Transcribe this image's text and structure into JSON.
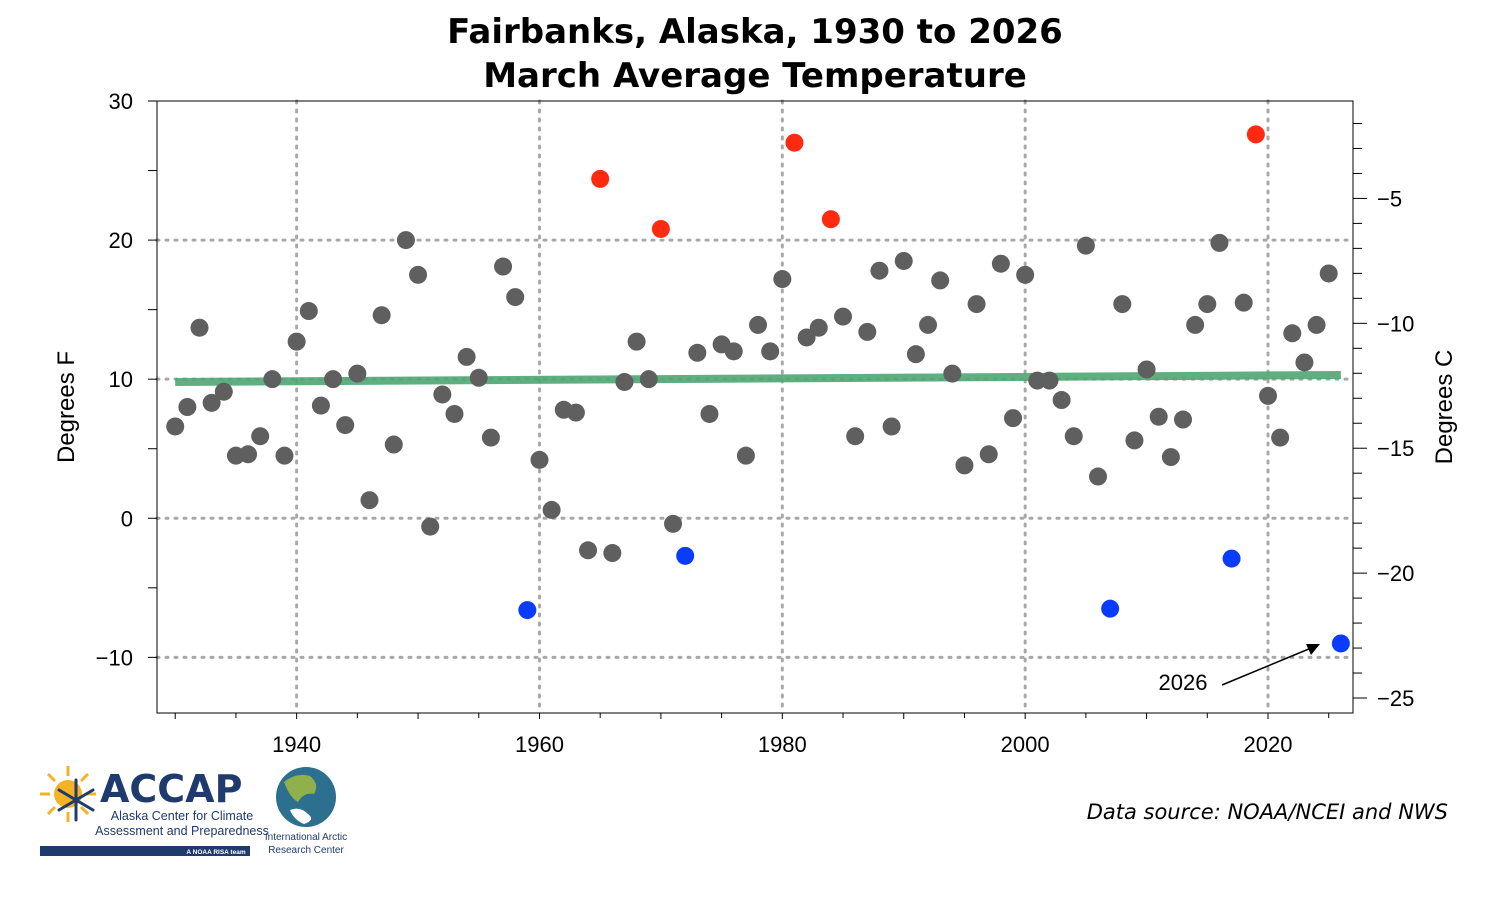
{
  "chart_data": {
    "type": "scatter",
    "title": "Fairbanks, Alaska, 1930 to 2026",
    "subtitle": "March Average Temperature",
    "ylabel": "Degrees F",
    "y2label": "Degrees C",
    "xlim": [
      1928.5,
      2027.0
    ],
    "ylim": [
      -14,
      30
    ],
    "y2lim": [
      -25.6,
      -1.1
    ],
    "xticks": [
      1940,
      1960,
      1980,
      2000,
      2020
    ],
    "yticks": [
      -10,
      0,
      10,
      20,
      30
    ],
    "y2ticks": [
      -25,
      -20,
      -15,
      -10,
      -5
    ],
    "grid": "dotted, major ticks",
    "colors": {
      "normal": "#5f5f5f",
      "warm": "#ff2a10",
      "cold": "#0a3cff",
      "trend": "#4fa774"
    },
    "trend": {
      "x": [
        1930,
        2026
      ],
      "y": [
        9.8,
        10.3
      ]
    },
    "annotation": {
      "text": "2026",
      "x": 2026,
      "y": -9.0
    },
    "points": [
      {
        "x": 1930,
        "y": 6.6,
        "c": "normal"
      },
      {
        "x": 1931,
        "y": 8.0,
        "c": "normal"
      },
      {
        "x": 1932,
        "y": 13.7,
        "c": "normal"
      },
      {
        "x": 1933,
        "y": 8.3,
        "c": "normal"
      },
      {
        "x": 1934,
        "y": 9.1,
        "c": "normal"
      },
      {
        "x": 1935,
        "y": 4.5,
        "c": "normal"
      },
      {
        "x": 1936,
        "y": 4.6,
        "c": "normal"
      },
      {
        "x": 1937,
        "y": 5.9,
        "c": "normal"
      },
      {
        "x": 1938,
        "y": 10.0,
        "c": "normal"
      },
      {
        "x": 1939,
        "y": 4.5,
        "c": "normal"
      },
      {
        "x": 1940,
        "y": 12.7,
        "c": "normal"
      },
      {
        "x": 1941,
        "y": 14.9,
        "c": "normal"
      },
      {
        "x": 1942,
        "y": 8.1,
        "c": "normal"
      },
      {
        "x": 1943,
        "y": 10.0,
        "c": "normal"
      },
      {
        "x": 1944,
        "y": 6.7,
        "c": "normal"
      },
      {
        "x": 1945,
        "y": 10.4,
        "c": "normal"
      },
      {
        "x": 1946,
        "y": 1.3,
        "c": "normal"
      },
      {
        "x": 1947,
        "y": 14.6,
        "c": "normal"
      },
      {
        "x": 1948,
        "y": 5.3,
        "c": "normal"
      },
      {
        "x": 1949,
        "y": 20.0,
        "c": "normal"
      },
      {
        "x": 1950,
        "y": 17.5,
        "c": "normal"
      },
      {
        "x": 1951,
        "y": -0.6,
        "c": "normal"
      },
      {
        "x": 1952,
        "y": 8.9,
        "c": "normal"
      },
      {
        "x": 1953,
        "y": 7.5,
        "c": "normal"
      },
      {
        "x": 1954,
        "y": 11.6,
        "c": "normal"
      },
      {
        "x": 1955,
        "y": 10.1,
        "c": "normal"
      },
      {
        "x": 1956,
        "y": 5.8,
        "c": "normal"
      },
      {
        "x": 1957,
        "y": 18.1,
        "c": "normal"
      },
      {
        "x": 1958,
        "y": 15.9,
        "c": "normal"
      },
      {
        "x": 1959,
        "y": -6.6,
        "c": "cold"
      },
      {
        "x": 1960,
        "y": 4.2,
        "c": "normal"
      },
      {
        "x": 1961,
        "y": 0.6,
        "c": "normal"
      },
      {
        "x": 1962,
        "y": 7.8,
        "c": "normal"
      },
      {
        "x": 1963,
        "y": 7.6,
        "c": "normal"
      },
      {
        "x": 1964,
        "y": -2.3,
        "c": "normal"
      },
      {
        "x": 1965,
        "y": 24.4,
        "c": "warm"
      },
      {
        "x": 1966,
        "y": -2.5,
        "c": "normal"
      },
      {
        "x": 1967,
        "y": 9.8,
        "c": "normal"
      },
      {
        "x": 1968,
        "y": 12.7,
        "c": "normal"
      },
      {
        "x": 1969,
        "y": 10.0,
        "c": "normal"
      },
      {
        "x": 1970,
        "y": 20.8,
        "c": "warm"
      },
      {
        "x": 1971,
        "y": -0.4,
        "c": "normal"
      },
      {
        "x": 1972,
        "y": -2.7,
        "c": "cold"
      },
      {
        "x": 1973,
        "y": 11.9,
        "c": "normal"
      },
      {
        "x": 1974,
        "y": 7.5,
        "c": "normal"
      },
      {
        "x": 1975,
        "y": 12.5,
        "c": "normal"
      },
      {
        "x": 1976,
        "y": 12.0,
        "c": "normal"
      },
      {
        "x": 1977,
        "y": 4.5,
        "c": "normal"
      },
      {
        "x": 1978,
        "y": 13.9,
        "c": "normal"
      },
      {
        "x": 1979,
        "y": 12.0,
        "c": "normal"
      },
      {
        "x": 1980,
        "y": 17.2,
        "c": "normal"
      },
      {
        "x": 1981,
        "y": 27.0,
        "c": "warm"
      },
      {
        "x": 1982,
        "y": 13.0,
        "c": "normal"
      },
      {
        "x": 1983,
        "y": 13.7,
        "c": "normal"
      },
      {
        "x": 1984,
        "y": 21.5,
        "c": "warm"
      },
      {
        "x": 1985,
        "y": 14.5,
        "c": "normal"
      },
      {
        "x": 1986,
        "y": 5.9,
        "c": "normal"
      },
      {
        "x": 1987,
        "y": 13.4,
        "c": "normal"
      },
      {
        "x": 1988,
        "y": 17.8,
        "c": "normal"
      },
      {
        "x": 1989,
        "y": 6.6,
        "c": "normal"
      },
      {
        "x": 1990,
        "y": 18.5,
        "c": "normal"
      },
      {
        "x": 1991,
        "y": 11.8,
        "c": "normal"
      },
      {
        "x": 1992,
        "y": 13.9,
        "c": "normal"
      },
      {
        "x": 1993,
        "y": 17.1,
        "c": "normal"
      },
      {
        "x": 1994,
        "y": 10.4,
        "c": "normal"
      },
      {
        "x": 1995,
        "y": 3.8,
        "c": "normal"
      },
      {
        "x": 1996,
        "y": 15.4,
        "c": "normal"
      },
      {
        "x": 1997,
        "y": 4.6,
        "c": "normal"
      },
      {
        "x": 1998,
        "y": 18.3,
        "c": "normal"
      },
      {
        "x": 1999,
        "y": 7.2,
        "c": "normal"
      },
      {
        "x": 2000,
        "y": 17.5,
        "c": "normal"
      },
      {
        "x": 2001,
        "y": 9.9,
        "c": "normal"
      },
      {
        "x": 2002,
        "y": 9.9,
        "c": "normal"
      },
      {
        "x": 2003,
        "y": 8.5,
        "c": "normal"
      },
      {
        "x": 2004,
        "y": 5.9,
        "c": "normal"
      },
      {
        "x": 2005,
        "y": 19.6,
        "c": "normal"
      },
      {
        "x": 2006,
        "y": 3.0,
        "c": "normal"
      },
      {
        "x": 2007,
        "y": -6.5,
        "c": "cold"
      },
      {
        "x": 2008,
        "y": 15.4,
        "c": "normal"
      },
      {
        "x": 2009,
        "y": 5.6,
        "c": "normal"
      },
      {
        "x": 2010,
        "y": 10.7,
        "c": "normal"
      },
      {
        "x": 2011,
        "y": 7.3,
        "c": "normal"
      },
      {
        "x": 2012,
        "y": 4.4,
        "c": "normal"
      },
      {
        "x": 2013,
        "y": 7.1,
        "c": "normal"
      },
      {
        "x": 2014,
        "y": 13.9,
        "c": "normal"
      },
      {
        "x": 2015,
        "y": 15.4,
        "c": "normal"
      },
      {
        "x": 2016,
        "y": 19.8,
        "c": "normal"
      },
      {
        "x": 2017,
        "y": -2.9,
        "c": "cold"
      },
      {
        "x": 2018,
        "y": 15.5,
        "c": "normal"
      },
      {
        "x": 2019,
        "y": 27.6,
        "c": "warm"
      },
      {
        "x": 2020,
        "y": 8.8,
        "c": "normal"
      },
      {
        "x": 2021,
        "y": 5.8,
        "c": "normal"
      },
      {
        "x": 2022,
        "y": 13.3,
        "c": "normal"
      },
      {
        "x": 2023,
        "y": 11.2,
        "c": "normal"
      },
      {
        "x": 2024,
        "y": 13.9,
        "c": "normal"
      },
      {
        "x": 2025,
        "y": 17.6,
        "c": "normal"
      },
      {
        "x": 2026,
        "y": -9.0,
        "c": "cold"
      }
    ]
  },
  "source": "Data source: NOAA/NCEI and NWS",
  "logo": {
    "accap_name": "ACCAP",
    "accap_line1": "Alaska Center for Climate",
    "accap_line2": "Assessment and Preparedness",
    "accap_tag": "A NOAA RISA team",
    "iarc_line1": "International Arctic",
    "iarc_line2": "Research Center"
  }
}
